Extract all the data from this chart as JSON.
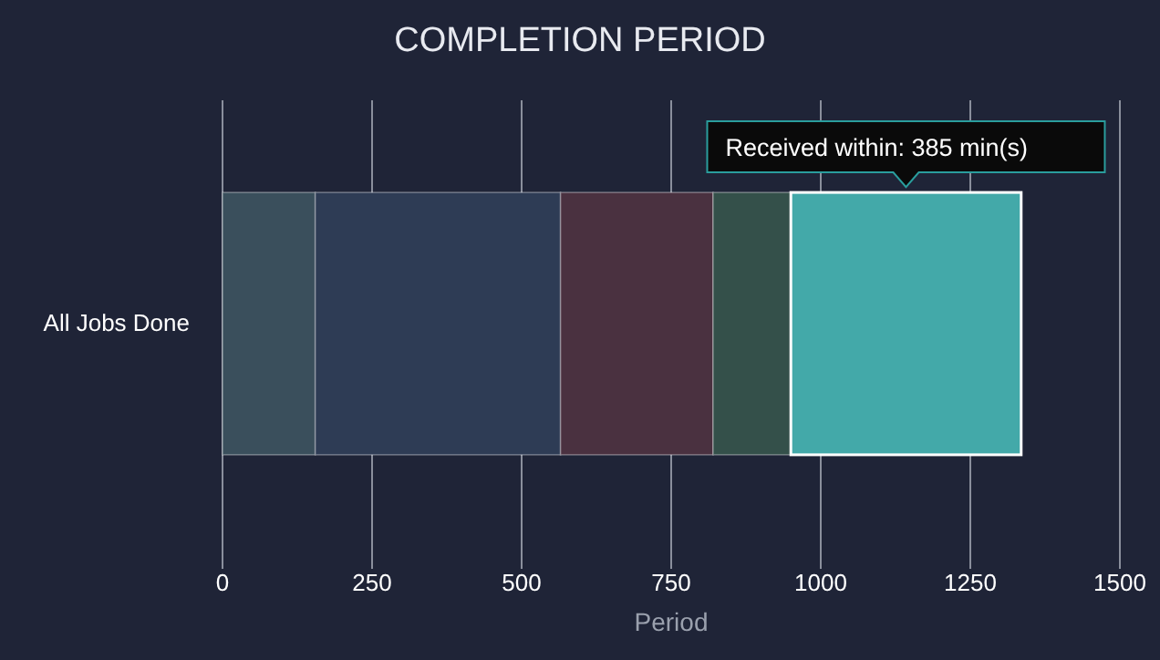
{
  "chart_data": {
    "type": "bar",
    "orientation": "horizontal",
    "stacked": true,
    "title": "COMPLETION PERIOD",
    "xlabel": "Period",
    "categories": [
      "All Jobs Done"
    ],
    "series": [
      {
        "color": "#3a4f5c",
        "values": [
          155
        ]
      },
      {
        "color": "#2e3c55",
        "values": [
          410
        ]
      },
      {
        "color": "#4a3140",
        "values": [
          255
        ]
      },
      {
        "color": "#34504a",
        "values": [
          130
        ]
      },
      {
        "color": "#43a9a9",
        "values": [
          385
        ]
      }
    ],
    "xlim": [
      0,
      1500
    ],
    "xticks": [
      0,
      250,
      500,
      750,
      1000,
      1250,
      1500
    ],
    "grid": "x",
    "annotations": [
      "Received within: 385 min(s)"
    ]
  }
}
